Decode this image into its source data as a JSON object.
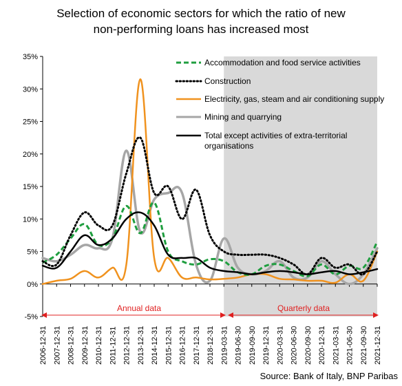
{
  "title_line1": "Selection of economic sectors for which the ratio of new",
  "title_line2": "non-performing loans has increased most",
  "source": "Source: Bank of Italy, BNP Paribas",
  "annual_label": "Annual data",
  "quarterly_label": "Quarterly data",
  "colors": {
    "accommodation": "#1f9e3f",
    "construction": "#000000",
    "electricity": "#f0921e",
    "mining": "#a6a6a6",
    "total": "#000000",
    "shade": "#d9d9d9",
    "annotation": "#e02020"
  },
  "chart_data": {
    "type": "line",
    "title": "Selection of economic sectors for which the ratio of new non-performing loans has increased most",
    "ylim": [
      -5,
      35
    ],
    "y_ticks": [
      -5,
      0,
      5,
      10,
      15,
      20,
      25,
      30,
      35
    ],
    "y_tick_labels": [
      "-5%",
      "0%",
      "5%",
      "10%",
      "15%",
      "20%",
      "25%",
      "30%",
      "35%"
    ],
    "grid": false,
    "legend_position": "top-right",
    "shaded_region": {
      "from": "2019-03-31",
      "to": "2021-12-31"
    },
    "x": [
      "2006-12-31",
      "2007-12-31",
      "2008-12-31",
      "2009-12-31",
      "2010-12-31",
      "2011-12-31",
      "2012-12-31",
      "2013-12-31",
      "2014-12-31",
      "2015-12-31",
      "2016-12-31",
      "2017-12-31",
      "2018-12-31",
      "2019-03-31",
      "2019-06-30",
      "2019-09-30",
      "2019-12-31",
      "2020-03-31",
      "2020-06-30",
      "2020-09-30",
      "2020-12-31",
      "2021-03-31",
      "2021-06-30",
      "2021-09-30",
      "2021-12-31"
    ],
    "series": [
      {
        "name": "Accommodation and food service activities",
        "style": "dashed",
        "values": [
          3.3,
          4.5,
          7,
          9.2,
          6,
          7,
          12,
          7.8,
          12.5,
          5,
          3.5,
          3,
          3.8,
          3.5,
          1.8,
          1.5,
          2.8,
          3,
          2,
          1.2,
          3,
          1.5,
          2.8,
          2.5,
          6.5
        ]
      },
      {
        "name": "Construction",
        "style": "dotted",
        "values": [
          3.5,
          3,
          7.5,
          11,
          9,
          9,
          17,
          22.5,
          14,
          15,
          10,
          14.5,
          7.5,
          5,
          4.5,
          4.5,
          4.5,
          4,
          3,
          1.5,
          4,
          2.5,
          3,
          1.5,
          5
        ]
      },
      {
        "name": "Electricity, gas, steam and air conditioning supply",
        "style": "solid",
        "values": [
          0,
          0.5,
          0.8,
          2,
          1,
          2.5,
          3,
          31.5,
          4,
          4,
          1,
          1,
          0.7,
          0.8,
          1,
          1.5,
          1.5,
          0.8,
          0.7,
          0.5,
          0.5,
          0.2,
          1.5,
          0.5,
          5
        ]
      },
      {
        "name": "Mining and quarrying",
        "style": "solid",
        "values": [
          4,
          3.5,
          4.5,
          6,
          5.5,
          7,
          20.5,
          8,
          13,
          14,
          14,
          3,
          0.5,
          7,
          2.5,
          1.5,
          2,
          3.5,
          1,
          1,
          3.5,
          1.5,
          0,
          1.5,
          5.5
        ]
      },
      {
        "name": "Total except activities of extra-territorial organisations",
        "style": "solid",
        "values": [
          2.8,
          2.5,
          5,
          7.5,
          6,
          7,
          10,
          11,
          9,
          4.5,
          4,
          4,
          2.5,
          2,
          1.8,
          1.5,
          1.8,
          2,
          1.8,
          1.5,
          1.8,
          2,
          1.5,
          1.8,
          2.3
        ]
      }
    ]
  }
}
